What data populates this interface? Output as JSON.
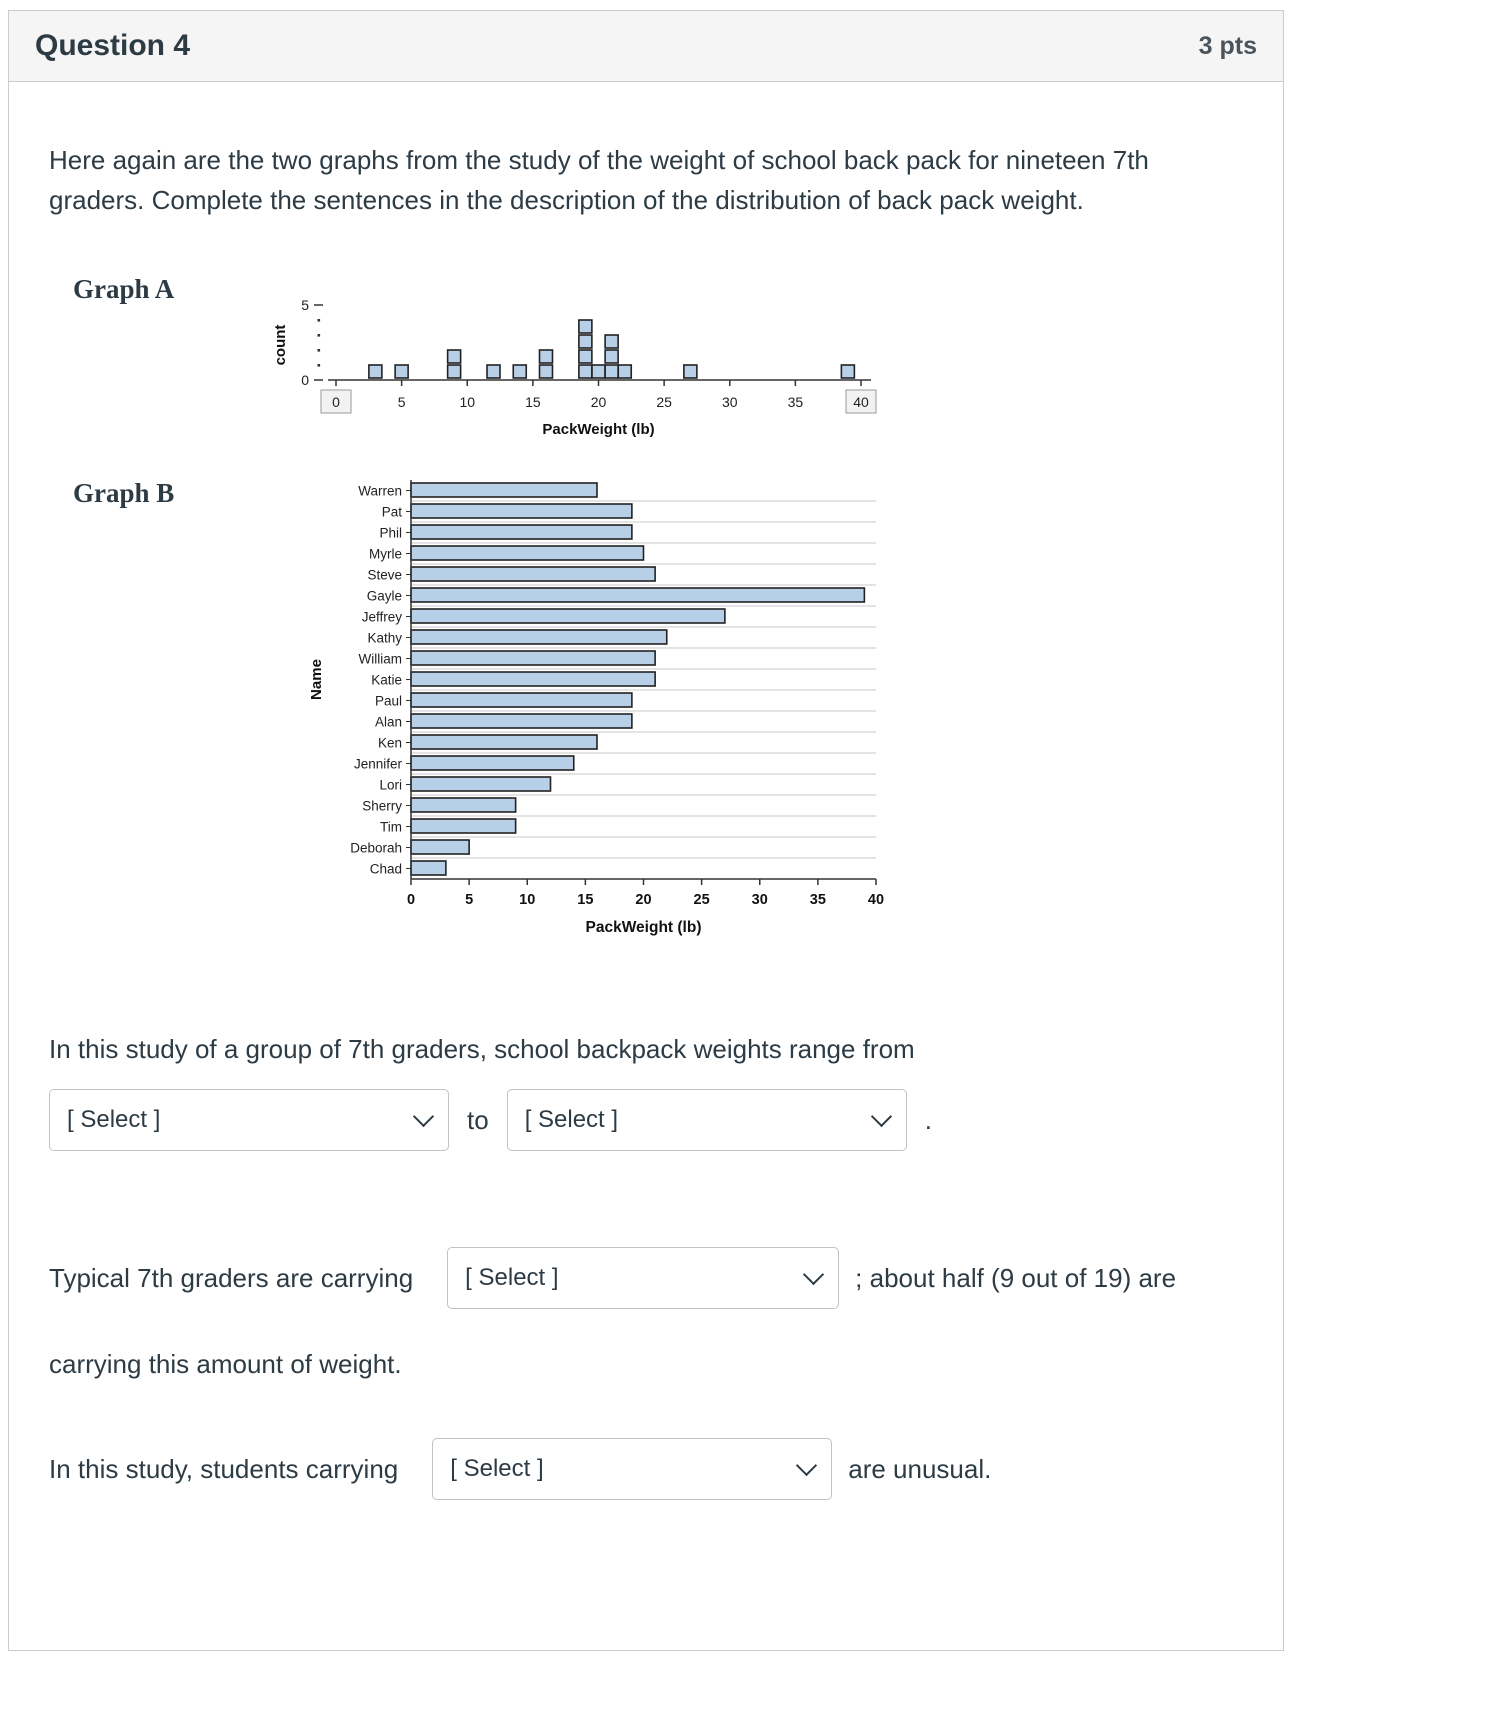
{
  "header": {
    "title": "Question 4",
    "points": "3 pts"
  },
  "intro": "Here again are the two graphs from the study of the weight of school back pack for nineteen 7th graders. Complete the sentences in the description of the distribution of back pack weight.",
  "chart_data": [
    {
      "type": "dotplot",
      "title": "Graph A",
      "xlabel": "PackWeight (lb)",
      "ylabel": "count",
      "xlim": [
        0,
        40
      ],
      "ylim": [
        0,
        5
      ],
      "xticks": [
        0,
        5,
        10,
        15,
        20,
        25,
        30,
        35,
        40
      ],
      "yticks": [
        0,
        5
      ],
      "boxed_xticks": [
        0,
        40
      ],
      "fill": "#b8cfe8",
      "values": [
        3,
        5,
        9,
        9,
        12,
        14,
        16,
        16,
        19,
        19,
        19,
        19,
        20,
        21,
        21,
        21,
        22,
        27,
        39
      ]
    },
    {
      "type": "bar",
      "title": "Graph B",
      "orientation": "horizontal",
      "xlabel": "PackWeight (lb)",
      "ylabel": "Name",
      "xlim": [
        0,
        40
      ],
      "xticks": [
        0,
        5,
        10,
        15,
        20,
        25,
        30,
        35,
        40
      ],
      "grid": "row-lines",
      "fill": "#b8cfe8",
      "categories": [
        "Warren",
        "Pat",
        "Phil",
        "Myrle",
        "Steve",
        "Gayle",
        "Jeffrey",
        "Kathy",
        "William",
        "Katie",
        "Paul",
        "Alan",
        "Ken",
        "Jennifer",
        "Lori",
        "Sherry",
        "Tim",
        "Deborah",
        "Chad"
      ],
      "values": [
        16,
        19,
        19,
        20,
        21,
        39,
        27,
        22,
        21,
        21,
        19,
        19,
        16,
        14,
        12,
        9,
        9,
        5,
        3
      ]
    }
  ],
  "sentence1": {
    "lead": "In this study of a group of 7th graders, school backpack weights range from",
    "select1": "[ Select ]",
    "to": "to",
    "select2": "[ Select ]",
    "period": "."
  },
  "sentence2": {
    "before": "Typical 7th graders are carrying",
    "select": "[ Select ]",
    "after": "; about half (9 out of 19) are",
    "line2": "carrying this amount of weight."
  },
  "sentence3": {
    "before": "In this study, students carrying",
    "select": "[ Select ]",
    "after": "are unusual."
  },
  "colors": {
    "header_bg": "#f5f5f5",
    "card_border": "#c7cdd1",
    "text": "#2d3b45",
    "chart_fill": "#b8cfe8"
  }
}
